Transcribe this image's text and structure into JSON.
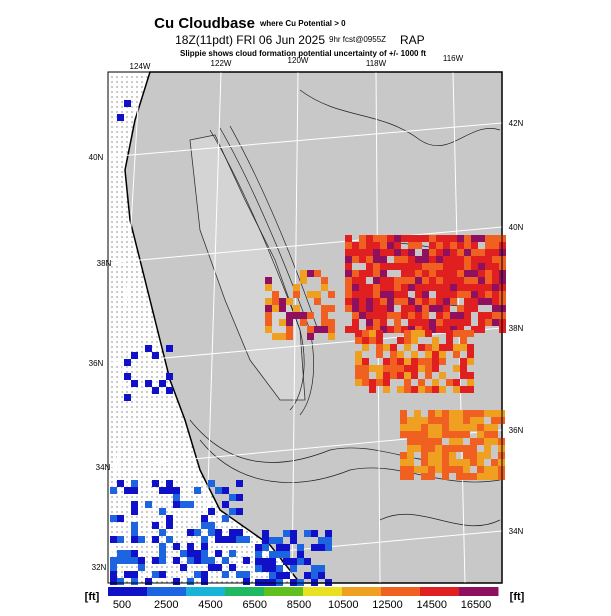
{
  "header": {
    "title": "Cu Cloudbase",
    "title_note": "where Cu Potential > 0",
    "valid": "18Z(11pdt) FRI 06 Jun 2025",
    "forecast": "9hr fcst@0955Z",
    "model": "RAP",
    "subtitle": "Slippie shows cloud formation potential uncertainty of +/- 1000 ft"
  },
  "map": {
    "lon_labels": [
      "124W",
      "122W",
      "120W",
      "118W",
      "116W"
    ],
    "lat_labels_left": [
      "40N",
      "38N",
      "36N",
      "34N",
      "32N"
    ],
    "lat_labels_right": [
      "42N",
      "40N",
      "38N",
      "36N",
      "34N"
    ]
  },
  "colorbar": {
    "unit_left": "[ft]",
    "unit_right": "[ft]",
    "ticks": [
      500,
      2500,
      4500,
      6500,
      8500,
      10500,
      12500,
      14500,
      16500
    ],
    "colors": [
      "#1010c8",
      "#1c64e0",
      "#18b4d8",
      "#20b860",
      "#60c020",
      "#e8e020",
      "#f0a020",
      "#f06020",
      "#e02020",
      "#901060"
    ]
  }
}
